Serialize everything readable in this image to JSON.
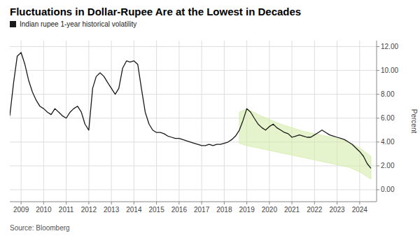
{
  "chart_data": {
    "type": "line",
    "title": "Fluctuations in Dollar-Rupee Are at the Lowest in Decades",
    "ylabel": "Percent",
    "annotations": [
      "Source: Bloomberg"
    ],
    "legend": "upper left",
    "grid": true,
    "xlim": [
      2008.5,
      2024.75
    ],
    "xticks": [
      2009,
      2010,
      2011,
      2012,
      2013,
      2014,
      2015,
      2016,
      2017,
      2018,
      2019,
      2020,
      2021,
      2022,
      2023,
      2024
    ],
    "ylim": [
      -1.0,
      12.5
    ],
    "yticks": [
      {
        "value": 0.0,
        "label": "0.00"
      },
      {
        "value": 2.0,
        "label": "2.00"
      },
      {
        "value": 4.0,
        "label": "4.00"
      },
      {
        "value": 6.0,
        "label": "6.00"
      },
      {
        "value": 8.0,
        "label": "8.00"
      },
      {
        "value": 10.0,
        "label": "10.00"
      },
      {
        "value": 12.0,
        "label": "12.00"
      }
    ],
    "x": [
      2008.5,
      2008.67,
      2008.83,
      2009.0,
      2009.17,
      2009.33,
      2009.5,
      2009.67,
      2009.83,
      2010.0,
      2010.17,
      2010.33,
      2010.5,
      2010.67,
      2010.83,
      2011.0,
      2011.17,
      2011.33,
      2011.5,
      2011.67,
      2011.83,
      2012.0,
      2012.17,
      2012.33,
      2012.5,
      2012.67,
      2012.83,
      2013.0,
      2013.17,
      2013.33,
      2013.5,
      2013.67,
      2013.83,
      2014.0,
      2014.17,
      2014.33,
      2014.5,
      2014.67,
      2014.83,
      2015.0,
      2015.17,
      2015.33,
      2015.5,
      2015.67,
      2015.83,
      2016.0,
      2016.17,
      2016.33,
      2016.5,
      2016.67,
      2016.83,
      2017.0,
      2017.17,
      2017.33,
      2017.5,
      2017.67,
      2017.83,
      2018.0,
      2018.17,
      2018.33,
      2018.5,
      2018.67,
      2018.83,
      2019.0,
      2019.17,
      2019.33,
      2019.5,
      2019.67,
      2019.83,
      2020.0,
      2020.17,
      2020.33,
      2020.5,
      2020.67,
      2020.83,
      2021.0,
      2021.17,
      2021.33,
      2021.5,
      2021.67,
      2021.83,
      2022.0,
      2022.17,
      2022.33,
      2022.5,
      2022.67,
      2022.83,
      2023.0,
      2023.17,
      2023.33,
      2023.5,
      2023.67,
      2023.83,
      2024.0,
      2024.17,
      2024.33,
      2024.5
    ],
    "series": [
      {
        "name": "Indian rupee 1-year historical volatility",
        "type": "line",
        "color": "#1a1a1a",
        "values": [
          6.2,
          9.0,
          11.2,
          11.5,
          10.5,
          9.2,
          8.2,
          7.5,
          7.0,
          6.8,
          6.5,
          6.3,
          6.8,
          6.5,
          6.2,
          6.0,
          6.5,
          6.8,
          7.0,
          6.5,
          5.5,
          5.0,
          8.5,
          9.5,
          9.8,
          9.5,
          9.0,
          8.5,
          8.0,
          8.5,
          10.2,
          10.8,
          10.7,
          10.8,
          10.5,
          8.5,
          6.5,
          5.5,
          5.0,
          4.8,
          4.8,
          4.7,
          4.5,
          4.4,
          4.3,
          4.3,
          4.2,
          4.1,
          4.0,
          3.9,
          3.8,
          3.7,
          3.7,
          3.8,
          3.7,
          3.8,
          3.8,
          3.9,
          4.0,
          4.2,
          4.5,
          5.0,
          5.8,
          6.8,
          6.5,
          6.0,
          5.5,
          5.2,
          5.0,
          5.3,
          5.5,
          5.2,
          5.0,
          4.8,
          4.7,
          4.4,
          4.5,
          4.6,
          4.5,
          4.4,
          4.4,
          4.6,
          4.8,
          5.0,
          4.8,
          4.6,
          4.5,
          4.4,
          4.3,
          4.2,
          4.0,
          3.8,
          3.5,
          3.2,
          2.8,
          2.2,
          1.8
        ]
      },
      {
        "type": "band",
        "color": "#d4edaa",
        "x": [
          2018.67,
          2019.0,
          2019.5,
          2020.0,
          2020.5,
          2021.0,
          2021.5,
          2022.0,
          2022.5,
          2023.0,
          2023.5,
          2024.0,
          2024.5
        ],
        "upper": [
          6.5,
          6.8,
          6.3,
          5.9,
          5.5,
          5.2,
          4.9,
          4.7,
          4.5,
          4.3,
          4.0,
          3.5,
          2.8
        ],
        "lower": [
          3.9,
          3.7,
          3.5,
          3.3,
          3.1,
          2.9,
          2.7,
          2.5,
          2.3,
          2.1,
          1.9,
          1.5,
          0.9
        ]
      }
    ]
  }
}
